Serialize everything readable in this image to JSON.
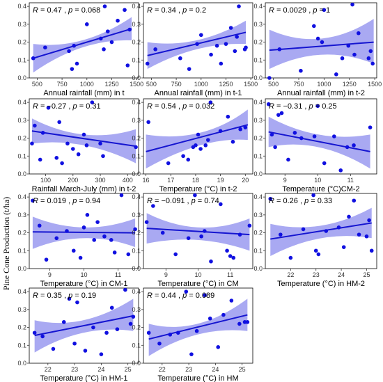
{
  "figure": {
    "ylabel": "Pine Cone Production (t/ha)",
    "colors": {
      "point": "#1010e0",
      "line": "#1515d0",
      "band": "#9a9af0"
    }
  },
  "chart_data": [
    {
      "type": "scatter",
      "xlabel": "Annual rainfall (mm) in t",
      "annotation": {
        "r": "0.47",
        "p": "0.068"
      },
      "xlim": [
        420,
        1520
      ],
      "ylim": [
        0,
        0.42
      ],
      "xticks": [
        "500",
        "750",
        "1000",
        "1250",
        "1500"
      ],
      "yticks": [
        "0.0",
        "0.1",
        "0.2",
        "0.3",
        "0.4"
      ],
      "points": {
        "x": [
          460,
          580,
          820,
          850,
          870,
          900,
          1000,
          1140,
          1170,
          1180,
          1210,
          1250,
          1310,
          1380,
          1410,
          1430
        ],
        "y": [
          0.11,
          0.17,
          0.15,
          0.05,
          0.18,
          0.08,
          0.3,
          0.22,
          0.16,
          0.4,
          0.26,
          0.2,
          0.32,
          0.38,
          0.07,
          0.27
        ]
      },
      "fit": {
        "x": [
          460,
          1450
        ],
        "y": [
          0.11,
          0.275
        ]
      },
      "band": {
        "x": [
          460,
          950,
          1450
        ],
        "upper": [
          0.19,
          0.21,
          0.34
        ],
        "lower": [
          0.03,
          0.17,
          0.21
        ]
      }
    },
    {
      "type": "scatter",
      "xlabel": "Annual rainfall (mm) in t-1",
      "annotation": {
        "r": "0.34",
        "p": "0.2"
      },
      "xlim": [
        420,
        1520
      ],
      "ylim": [
        0,
        0.42
      ],
      "xticks": [
        "500",
        "750",
        "1000",
        "1250",
        "1500"
      ],
      "yticks": [
        "0.0",
        "0.1",
        "0.2",
        "0.3",
        "0.4"
      ],
      "points": {
        "x": [
          460,
          540,
          790,
          880,
          960,
          1000,
          1100,
          1160,
          1200,
          1250,
          1300,
          1340,
          1360,
          1380,
          1440,
          1450
        ],
        "y": [
          0.08,
          0.16,
          0.11,
          0.05,
          0.19,
          0.24,
          0.13,
          0.18,
          0.08,
          0.19,
          0.28,
          0.15,
          0.23,
          0.4,
          0.16,
          0.17
        ]
      },
      "fit": {
        "x": [
          460,
          1450
        ],
        "y": [
          0.125,
          0.255
        ]
      },
      "band": {
        "x": [
          460,
          950,
          1450
        ],
        "upper": [
          0.2,
          0.21,
          0.32
        ],
        "lower": [
          0.05,
          0.16,
          0.19
        ]
      }
    },
    {
      "type": "scatter",
      "xlabel": "Annual rainfall (mm) in t-2",
      "annotation": {
        "r": "0.0029",
        "p": "1"
      },
      "xlim": [
        420,
        1520
      ],
      "ylim": [
        0,
        0.42
      ],
      "xticks": [
        "500",
        "750",
        "1000",
        "1250",
        "1500"
      ],
      "yticks": [
        "0.0",
        "0.1",
        "0.2",
        "0.3",
        "0.4"
      ],
      "points": {
        "x": [
          460,
          560,
          770,
          900,
          940,
          980,
          1000,
          1120,
          1180,
          1240,
          1280,
          1300,
          1340,
          1440,
          1460,
          1480
        ],
        "y": [
          0.0,
          0.16,
          0.04,
          0.29,
          0.22,
          0.2,
          0.38,
          0.02,
          0.11,
          0.18,
          0.41,
          0.13,
          0.25,
          0.11,
          0.15,
          0.08
        ]
      },
      "fit": {
        "x": [
          460,
          1490
        ],
        "y": [
          0.155,
          0.2
        ]
      },
      "band": {
        "x": [
          460,
          975,
          1490
        ],
        "upper": [
          0.27,
          0.22,
          0.33
        ],
        "lower": [
          0.05,
          0.13,
          0.08
        ]
      }
    },
    {
      "type": "scatter",
      "xlabel": "Rainfall March-July (mm) in t-2",
      "annotation": {
        "r": "−0.27",
        "p": "0.31"
      },
      "xlim": [
        40,
        440
      ],
      "ylim": [
        0,
        0.42
      ],
      "xticks": [
        "100",
        "200",
        "300",
        "400"
      ],
      "yticks": [
        "0.0",
        "0.1",
        "0.2",
        "0.3",
        "0.4"
      ],
      "points": {
        "x": [
          50,
          60,
          80,
          90,
          110,
          140,
          150,
          160,
          180,
          200,
          220,
          240,
          250,
          270,
          300,
          310,
          430
        ],
        "y": [
          0.17,
          0.27,
          0.08,
          0.23,
          0.37,
          0.09,
          0.29,
          0.06,
          0.17,
          0.14,
          0.11,
          0.22,
          0.16,
          0.4,
          0.17,
          0.1,
          0.15
        ]
      },
      "fit": {
        "x": [
          50,
          430
        ],
        "y": [
          0.24,
          0.155
        ]
      },
      "band": {
        "x": [
          50,
          240,
          430
        ],
        "upper": [
          0.31,
          0.22,
          0.25
        ],
        "lower": [
          0.17,
          0.16,
          0.06
        ]
      }
    },
    {
      "type": "scatter",
      "xlabel": "Temperature (°C) in t-2",
      "annotation": {
        "r": "0.54",
        "p": "0.032"
      },
      "xlim": [
        15.9,
        20.3
      ],
      "ylim": [
        0,
        0.42
      ],
      "xticks": [
        "16",
        "17",
        "18",
        "19",
        "20"
      ],
      "yticks": [
        "0.0",
        "0.1",
        "0.2",
        "0.3",
        "0.4"
      ],
      "points": {
        "x": [
          16.1,
          16.9,
          17.5,
          17.7,
          17.9,
          18.0,
          18.1,
          18.2,
          18.4,
          18.5,
          18.6,
          19.0,
          19.3,
          19.5,
          19.8,
          20.0
        ],
        "y": [
          0.29,
          0.06,
          0.1,
          0.08,
          0.15,
          0.16,
          0.22,
          0.14,
          0.16,
          0.19,
          0.4,
          0.24,
          0.32,
          0.18,
          0.25,
          0.26
        ]
      },
      "fit": {
        "x": [
          16.0,
          20.1
        ],
        "y": [
          0.125,
          0.275
        ]
      },
      "band": {
        "x": [
          16.0,
          18.3,
          20.1
        ],
        "upper": [
          0.22,
          0.23,
          0.36
        ],
        "lower": [
          0.03,
          0.16,
          0.19
        ]
      }
    },
    {
      "type": "scatter",
      "xlabel": "Temperature (°C)CM-2",
      "annotation": {
        "r": "−0.31",
        "p": "0.25"
      },
      "xlim": [
        8.4,
        11.8
      ],
      "ylim": [
        0,
        0.42
      ],
      "xticks": [
        "9",
        "10",
        "11"
      ],
      "yticks": [
        "0.0",
        "0.1",
        "0.2",
        "0.3",
        "0.4"
      ],
      "points": {
        "x": [
          8.5,
          8.6,
          8.7,
          8.8,
          8.9,
          9.1,
          9.3,
          9.5,
          9.9,
          10.0,
          10.2,
          10.5,
          10.7,
          10.9,
          11.1,
          11.6
        ],
        "y": [
          0.39,
          0.22,
          0.15,
          0.33,
          0.34,
          0.08,
          0.23,
          0.2,
          0.21,
          0.38,
          0.06,
          0.21,
          0.02,
          0.15,
          0.16,
          0.26
        ]
      },
      "fit": {
        "x": [
          8.5,
          11.6
        ],
        "y": [
          0.235,
          0.125
        ]
      },
      "band": {
        "x": [
          8.5,
          10.0,
          11.6
        ],
        "upper": [
          0.32,
          0.22,
          0.22
        ],
        "lower": [
          0.15,
          0.15,
          0.03
        ]
      }
    },
    {
      "type": "scatter",
      "xlabel": "Temperature (°C) in CM-1",
      "annotation": {
        "r": "0.019",
        "p": "0.94"
      },
      "xlim": [
        8.4,
        11.6
      ],
      "ylim": [
        0,
        0.42
      ],
      "xticks": [
        "9",
        "10",
        "11"
      ],
      "yticks": [
        "0.0",
        "0.1",
        "0.2",
        "0.3",
        "0.4"
      ],
      "points": {
        "x": [
          8.5,
          8.7,
          8.9,
          9.2,
          9.5,
          9.7,
          9.9,
          10.0,
          10.1,
          10.3,
          10.4,
          10.6,
          10.8,
          10.9,
          11.1,
          11.3,
          11.5
        ],
        "y": [
          0.38,
          0.24,
          0.05,
          0.17,
          0.21,
          0.1,
          0.06,
          0.23,
          0.3,
          0.16,
          0.26,
          0.18,
          0.16,
          0.09,
          0.41,
          0.08,
          0.22
        ]
      },
      "fit": {
        "x": [
          8.5,
          11.5
        ],
        "y": [
          0.205,
          0.2
        ]
      },
      "band": {
        "x": [
          8.5,
          10.0,
          11.5
        ],
        "upper": [
          0.29,
          0.23,
          0.28
        ],
        "lower": [
          0.11,
          0.17,
          0.12
        ]
      }
    },
    {
      "type": "scatter",
      "xlabel": "Temperature (°C) in CM",
      "annotation": {
        "r": "−0.091",
        "p": "0.74"
      },
      "xlim": [
        8.3,
        11.7
      ],
      "ylim": [
        0,
        0.42
      ],
      "xticks": [
        "9",
        "10",
        "11"
      ],
      "yticks": [
        "0.0",
        "0.1",
        "0.2",
        "0.3",
        "0.4"
      ],
      "points": {
        "x": [
          8.4,
          8.6,
          8.9,
          9.3,
          9.7,
          9.9,
          10.1,
          10.2,
          10.4,
          10.7,
          10.9,
          11.0,
          11.1,
          11.3,
          11.6
        ],
        "y": [
          0.26,
          0.35,
          0.2,
          0.08,
          0.17,
          0.41,
          0.18,
          0.21,
          0.04,
          0.36,
          0.1,
          0.07,
          0.06,
          0.19,
          0.24
        ]
      },
      "fit": {
        "x": [
          8.4,
          11.6
        ],
        "y": [
          0.225,
          0.19
        ]
      },
      "band": {
        "x": [
          8.4,
          10.0,
          11.6
        ],
        "upper": [
          0.31,
          0.23,
          0.28
        ],
        "lower": [
          0.14,
          0.16,
          0.1
        ]
      }
    },
    {
      "type": "scatter",
      "xlabel": "Temperature (°C) in HM-2",
      "annotation": {
        "r": "0.26",
        "p": "0.33"
      },
      "xlim": [
        21.0,
        25.4
      ],
      "ylim": [
        0,
        0.42
      ],
      "xticks": [
        "22",
        "23",
        "24",
        "25"
      ],
      "yticks": [
        "0.0",
        "0.1",
        "0.2",
        "0.3",
        "0.4"
      ],
      "points": {
        "x": [
          21.2,
          21.6,
          22.0,
          22.5,
          22.9,
          23.0,
          23.1,
          23.4,
          23.9,
          24.1,
          24.3,
          24.5,
          24.7,
          25.0,
          25.1,
          25.2
        ],
        "y": [
          0.39,
          0.19,
          0.06,
          0.22,
          0.41,
          0.1,
          0.08,
          0.21,
          0.23,
          0.12,
          0.29,
          0.38,
          0.19,
          0.18,
          0.27,
          0.1
        ]
      },
      "fit": {
        "x": [
          21.2,
          25.2
        ],
        "y": [
          0.165,
          0.255
        ]
      },
      "band": {
        "x": [
          21.2,
          23.2,
          25.2
        ],
        "upper": [
          0.25,
          0.24,
          0.34
        ],
        "lower": [
          0.07,
          0.17,
          0.17
        ]
      }
    },
    {
      "type": "scatter",
      "xlabel": "Temperature (°C) in HM-1",
      "annotation": {
        "r": "0.35",
        "p": "0.19"
      },
      "xlim": [
        21.3,
        25.4
      ],
      "ylim": [
        0,
        0.42
      ],
      "xticks": [
        "22",
        "23",
        "24",
        "25"
      ],
      "yticks": [
        "0.0",
        "0.1",
        "0.2",
        "0.3",
        "0.4"
      ],
      "points": {
        "x": [
          21.5,
          21.8,
          22.2,
          22.6,
          22.8,
          23.0,
          23.1,
          23.4,
          23.7,
          24.0,
          24.2,
          24.4,
          24.6,
          24.9,
          25.1,
          25.2
        ],
        "y": [
          0.17,
          0.15,
          0.08,
          0.23,
          0.36,
          0.11,
          0.34,
          0.07,
          0.2,
          0.05,
          0.17,
          0.31,
          0.19,
          0.41,
          0.22,
          0.26
        ]
      },
      "fit": {
        "x": [
          21.5,
          25.2
        ],
        "y": [
          0.155,
          0.265
        ]
      },
      "band": {
        "x": [
          21.5,
          23.3,
          25.2
        ],
        "upper": [
          0.24,
          0.24,
          0.36
        ],
        "lower": [
          0.06,
          0.17,
          0.18
        ]
      }
    },
    {
      "type": "scatter",
      "xlabel": "Temperature (°C) in HM",
      "annotation": {
        "r": "0.44",
        "p": "0.089"
      },
      "xlim": [
        21.3,
        25.4
      ],
      "ylim": [
        0,
        0.42
      ],
      "xticks": [
        "22",
        "23",
        "24",
        "25"
      ],
      "yticks": [
        "0.0",
        "0.1",
        "0.2",
        "0.3",
        "0.4"
      ],
      "points": {
        "x": [
          21.5,
          21.9,
          22.3,
          22.6,
          22.9,
          23.1,
          23.3,
          23.6,
          23.8,
          24.1,
          24.3,
          24.6,
          24.9,
          25.1,
          25.2
        ],
        "y": [
          0.17,
          0.11,
          0.16,
          0.17,
          0.4,
          0.05,
          0.18,
          0.38,
          0.25,
          0.09,
          0.27,
          0.35,
          0.22,
          0.23,
          0.23
        ]
      },
      "fit": {
        "x": [
          21.5,
          25.2
        ],
        "y": [
          0.135,
          0.27
        ]
      },
      "band": {
        "x": [
          21.5,
          23.3,
          25.2
        ],
        "upper": [
          0.22,
          0.22,
          0.36
        ],
        "lower": [
          0.04,
          0.16,
          0.18
        ]
      }
    }
  ]
}
